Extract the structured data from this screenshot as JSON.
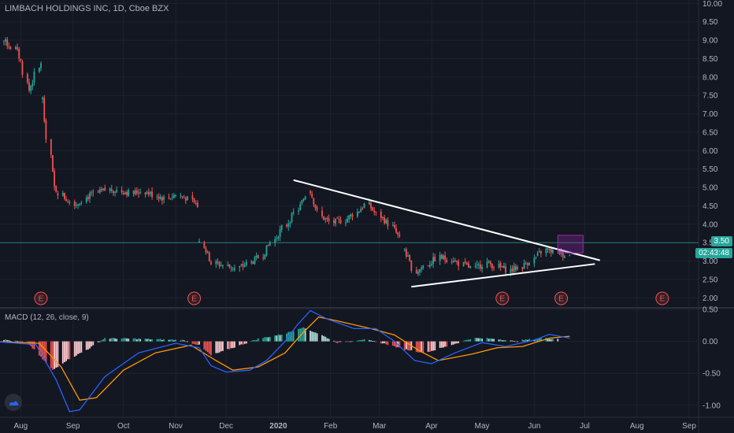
{
  "header": {
    "symbol_title": "LIMBACH HOLDINGS INC, 1D, Cboe BZX",
    "macd_title": "MACD (12, 26, close, 9)"
  },
  "price_tags": {
    "horizontal_level": "3.50",
    "countdown": "02:43:48"
  },
  "colors": {
    "background": "#131722",
    "grid": "#1e222d",
    "up": "#26a69a",
    "down": "#ef5350",
    "macd_line": "#2962ff",
    "signal_line": "#ff9800",
    "level_line": "#26a69a",
    "earnings": "#ef5350",
    "trendline": "#ffffff",
    "box": "#9c27b0"
  },
  "chart_data": [
    {
      "type": "candlestick",
      "title": "LIMBACH HOLDINGS INC, 1D, Cboe BZX",
      "x_ticks": [
        "Aug",
        "Sep",
        "Oct",
        "Nov",
        "Dec",
        "2020",
        "Feb",
        "Mar",
        "Apr",
        "May",
        "Jun",
        "Jul",
        "Aug",
        "Sep"
      ],
      "y_ticks": [
        "10.00",
        "9.50",
        "9.00",
        "8.50",
        "8.00",
        "7.50",
        "7.00",
        "6.50",
        "6.00",
        "5.50",
        "5.00",
        "4.50",
        "4.00",
        "3.50",
        "3.00",
        "2.50",
        "2.00"
      ],
      "ylim": [
        1.75,
        10.05
      ],
      "grid": true,
      "earnings_markers": [
        "2019-08-13",
        "2019-11-12",
        "2020-05-13",
        "2020-06-17",
        "2020-08-16"
      ],
      "earnings_label": "E",
      "horizontal_level": 3.5,
      "trendlines": [
        {
          "from": [
            "2020-01-10",
            5.2
          ],
          "to": [
            "2020-07-10",
            3.02
          ]
        },
        {
          "from": [
            "2020-03-20",
            2.3
          ],
          "to": [
            "2020-07-07",
            2.92
          ]
        }
      ],
      "highlight_box": {
        "from": [
          "2020-06-15",
          3.22
        ],
        "to": [
          "2020-06-30",
          3.7
        ]
      },
      "series": [
        {
          "segment": "2019-07-15/2019-08-13",
          "price_path": [
            9.15,
            9.1,
            8.98,
            8.85,
            8.75,
            8.4,
            7.6,
            7.95,
            8.4
          ]
        },
        {
          "segment": "2019-08-14/2019-11-14",
          "price_path": [
            7.4,
            5.0,
            4.7,
            4.55,
            4.75,
            4.85,
            4.95,
            4.9,
            4.85,
            4.9,
            4.8,
            4.7,
            4.8,
            4.7,
            4.5
          ]
        },
        {
          "segment": "2019-11-15/2020-01-17",
          "price_path": [
            3.5,
            2.95,
            2.88,
            2.8,
            2.92,
            3.1,
            3.5,
            3.9,
            4.3,
            4.8
          ]
        },
        {
          "segment": "2020-01-18/2020-03-15",
          "price_path": [
            4.9,
            4.2,
            4.05,
            4.1,
            4.3,
            4.55,
            4.25,
            4.0,
            3.6
          ]
        },
        {
          "segment": "2020-03-16/2020-06-22",
          "price_path": [
            3.3,
            2.7,
            2.9,
            3.1,
            3.05,
            2.9,
            2.8,
            2.95,
            2.85,
            2.75,
            2.85,
            3.05,
            3.3,
            3.25,
            3.15
          ]
        }
      ]
    },
    {
      "type": "histogram+line",
      "title": "MACD (12, 26, close, 9)",
      "y_ticks": [
        "0.50",
        "0.00",
        "-0.50",
        "-1.00"
      ],
      "ylim": [
        -1.15,
        0.5
      ],
      "series": [
        {
          "name": "MACD",
          "points": [
            [
              "2019-07-15",
              0.0
            ],
            [
              "2019-08-10",
              -0.05
            ],
            [
              "2019-08-22",
              -0.6
            ],
            [
              "2019-08-30",
              -1.1
            ],
            [
              "2019-09-05",
              -1.07
            ],
            [
              "2019-09-20",
              -0.55
            ],
            [
              "2019-10-10",
              -0.18
            ],
            [
              "2019-11-01",
              -0.03
            ],
            [
              "2019-11-15",
              -0.1
            ],
            [
              "2019-11-22",
              -0.38
            ],
            [
              "2019-12-01",
              -0.48
            ],
            [
              "2019-12-15",
              -0.45
            ],
            [
              "2019-12-25",
              -0.3
            ],
            [
              "2020-01-05",
              0.0
            ],
            [
              "2020-01-12",
              0.25
            ],
            [
              "2020-01-20",
              0.48
            ],
            [
              "2020-01-30",
              0.35
            ],
            [
              "2020-02-15",
              0.2
            ],
            [
              "2020-02-28",
              0.2
            ],
            [
              "2020-03-10",
              0.0
            ],
            [
              "2020-03-22",
              -0.3
            ],
            [
              "2020-04-01",
              -0.35
            ],
            [
              "2020-04-15",
              -0.18
            ],
            [
              "2020-05-01",
              -0.02
            ],
            [
              "2020-05-15",
              -0.08
            ],
            [
              "2020-06-01",
              0.02
            ],
            [
              "2020-06-10",
              0.11
            ],
            [
              "2020-06-22",
              0.05
            ]
          ]
        },
        {
          "name": "Signal",
          "points": [
            [
              "2019-07-15",
              0.0
            ],
            [
              "2019-08-12",
              -0.03
            ],
            [
              "2019-08-25",
              -0.4
            ],
            [
              "2019-09-05",
              -0.92
            ],
            [
              "2019-09-15",
              -0.88
            ],
            [
              "2019-10-01",
              -0.45
            ],
            [
              "2019-10-20",
              -0.18
            ],
            [
              "2019-11-10",
              -0.06
            ],
            [
              "2019-11-25",
              -0.3
            ],
            [
              "2019-12-05",
              -0.45
            ],
            [
              "2019-12-20",
              -0.4
            ],
            [
              "2020-01-05",
              -0.18
            ],
            [
              "2020-01-15",
              0.12
            ],
            [
              "2020-01-25",
              0.38
            ],
            [
              "2020-02-05",
              0.32
            ],
            [
              "2020-02-25",
              0.2
            ],
            [
              "2020-03-10",
              0.1
            ],
            [
              "2020-03-25",
              -0.15
            ],
            [
              "2020-04-05",
              -0.3
            ],
            [
              "2020-04-25",
              -0.2
            ],
            [
              "2020-05-10",
              -0.1
            ],
            [
              "2020-05-25",
              -0.08
            ],
            [
              "2020-06-10",
              0.05
            ],
            [
              "2020-06-22",
              0.08
            ]
          ]
        },
        {
          "name": "Histogram",
          "points": [
            [
              "2019-07-15",
              0.05
            ],
            [
              "2019-08-05",
              -0.02
            ],
            [
              "2019-08-20",
              -0.45
            ],
            [
              "2019-08-28",
              -0.3
            ],
            [
              "2019-09-10",
              -0.12
            ],
            [
              "2019-09-20",
              0.05
            ],
            [
              "2019-10-10",
              0.04
            ],
            [
              "2019-11-05",
              0.02
            ],
            [
              "2019-11-15",
              -0.06
            ],
            [
              "2019-11-22",
              -0.22
            ],
            [
              "2019-12-05",
              -0.1
            ],
            [
              "2019-12-20",
              0.04
            ],
            [
              "2020-01-05",
              0.12
            ],
            [
              "2020-01-15",
              0.22
            ],
            [
              "2020-01-25",
              0.12
            ],
            [
              "2020-02-05",
              -0.02
            ],
            [
              "2020-02-20",
              0.03
            ],
            [
              "2020-03-05",
              -0.04
            ],
            [
              "2020-03-15",
              -0.12
            ],
            [
              "2020-03-28",
              -0.18
            ],
            [
              "2020-04-10",
              -0.08
            ],
            [
              "2020-04-25",
              0.05
            ],
            [
              "2020-05-10",
              0.04
            ],
            [
              "2020-05-20",
              0.0
            ],
            [
              "2020-06-05",
              0.05
            ],
            [
              "2020-06-15",
              0.04
            ]
          ]
        }
      ]
    }
  ]
}
